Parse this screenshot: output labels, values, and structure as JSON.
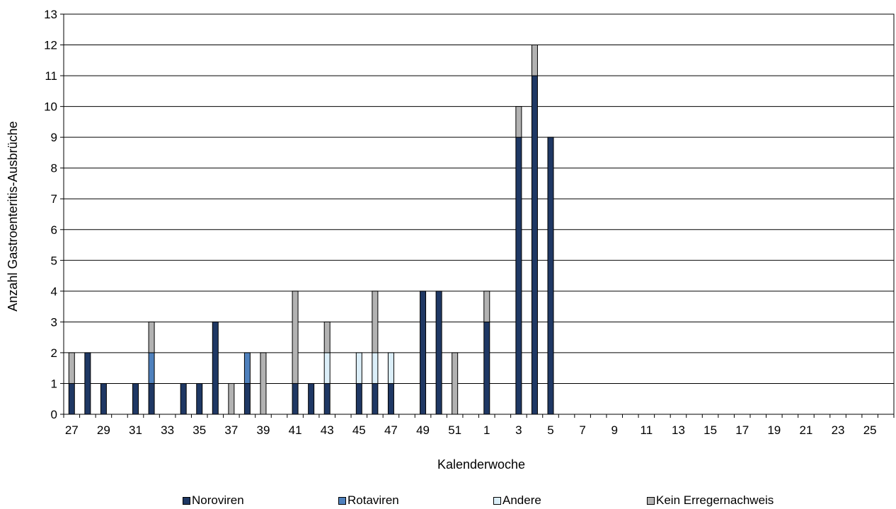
{
  "chart_data": {
    "type": "bar",
    "stacked": true,
    "title": "",
    "xlabel": "Kalenderwoche",
    "ylabel": "Anzahl Gastroenteritis-Ausbrüche",
    "ylim": [
      0,
      13
    ],
    "yticks": [
      "0",
      "1",
      "2",
      "3",
      "4",
      "5",
      "6",
      "7",
      "8",
      "9",
      "10",
      "11",
      "12",
      "13"
    ],
    "grid": true,
    "legend_position": "bottom",
    "categories": [
      "27",
      "28",
      "29",
      "30",
      "31",
      "32",
      "33",
      "34",
      "35",
      "36",
      "37",
      "38",
      "39",
      "40",
      "41",
      "42",
      "43",
      "44",
      "45",
      "46",
      "47",
      "48",
      "49",
      "50",
      "51",
      "52",
      "1",
      "2",
      "3",
      "4",
      "5",
      "6",
      "7",
      "8",
      "9",
      "10",
      "11",
      "12",
      "13",
      "14",
      "15",
      "16",
      "17",
      "18",
      "19",
      "20",
      "21",
      "22",
      "23",
      "24",
      "25",
      "26"
    ],
    "xtick_labels": [
      "27",
      "",
      "29",
      "",
      "31",
      "",
      "33",
      "",
      "35",
      "",
      "37",
      "",
      "39",
      "",
      "41",
      "",
      "43",
      "",
      "45",
      "",
      "47",
      "",
      "49",
      "",
      "51",
      "",
      "1",
      "",
      "3",
      "",
      "5",
      "",
      "7",
      "",
      "9",
      "",
      "11",
      "",
      "13",
      "",
      "15",
      "",
      "17",
      "",
      "19",
      "",
      "21",
      "",
      "23",
      "",
      "25",
      ""
    ],
    "series": [
      {
        "name": "Noroviren",
        "color": "#1f3864",
        "values": [
          1,
          2,
          1,
          0,
          1,
          1,
          0,
          1,
          1,
          3,
          0,
          1,
          0,
          0,
          1,
          1,
          1,
          0,
          1,
          1,
          1,
          0,
          4,
          4,
          0,
          0,
          3,
          0,
          9,
          11,
          9,
          0,
          0,
          0,
          0,
          0,
          0,
          0,
          0,
          0,
          0,
          0,
          0,
          0,
          0,
          0,
          0,
          0,
          0,
          0,
          0,
          0
        ]
      },
      {
        "name": "Rotaviren",
        "color": "#4f81bd",
        "values": [
          0,
          0,
          0,
          0,
          0,
          1,
          0,
          0,
          0,
          0,
          0,
          1,
          0,
          0,
          0,
          0,
          0,
          0,
          0,
          0,
          0,
          0,
          0,
          0,
          0,
          0,
          0,
          0,
          0,
          0,
          0,
          0,
          0,
          0,
          0,
          0,
          0,
          0,
          0,
          0,
          0,
          0,
          0,
          0,
          0,
          0,
          0,
          0,
          0,
          0,
          0,
          0
        ]
      },
      {
        "name": "Andere",
        "color": "#dbeef8",
        "values": [
          0,
          0,
          0,
          0,
          0,
          0,
          0,
          0,
          0,
          0,
          0,
          0,
          0,
          0,
          0,
          0,
          1,
          0,
          1,
          1,
          1,
          0,
          0,
          0,
          0,
          0,
          0,
          0,
          0,
          0,
          0,
          0,
          0,
          0,
          0,
          0,
          0,
          0,
          0,
          0,
          0,
          0,
          0,
          0,
          0,
          0,
          0,
          0,
          0,
          0,
          0,
          0
        ]
      },
      {
        "name": "Kein Erregernachweis",
        "color": "#b2b2b2",
        "values": [
          1,
          0,
          0,
          0,
          0,
          1,
          0,
          0,
          0,
          0,
          1,
          0,
          2,
          0,
          3,
          0,
          1,
          0,
          0,
          2,
          0,
          0,
          0,
          0,
          2,
          0,
          1,
          0,
          1,
          1,
          0,
          0,
          0,
          0,
          0,
          0,
          0,
          0,
          0,
          0,
          0,
          0,
          0,
          0,
          0,
          0,
          0,
          0,
          0,
          0,
          0,
          0
        ]
      }
    ]
  }
}
